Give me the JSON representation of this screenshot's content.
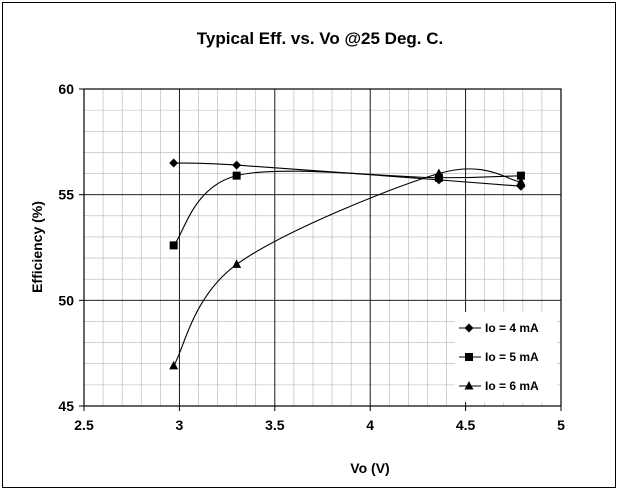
{
  "chart_data": {
    "type": "line",
    "title": "Typical Eff. vs. Vo @25 Deg. C.",
    "xlabel": "Vo (V)",
    "ylabel": "Efficiency (%)",
    "xlim": [
      2.5,
      5
    ],
    "ylim": [
      45,
      60
    ],
    "x_ticks": [
      "2.5",
      "3",
      "3.5",
      "4",
      "4.5",
      "5"
    ],
    "y_ticks": [
      "45",
      "50",
      "55",
      "60"
    ],
    "grid": true,
    "legend_position": "bottom-right",
    "series": [
      {
        "name": "Io = 4 mA",
        "marker": "diamond",
        "x": [
          2.97,
          3.3,
          4.36,
          4.79
        ],
        "y": [
          56.5,
          56.4,
          55.7,
          55.4
        ]
      },
      {
        "name": "Io = 5 mA",
        "marker": "square",
        "x": [
          2.97,
          3.3,
          4.36,
          4.79
        ],
        "y": [
          52.6,
          55.9,
          55.8,
          55.9
        ]
      },
      {
        "name": "Io = 6 mA",
        "marker": "triangle",
        "x": [
          2.97,
          3.3,
          4.36,
          4.79
        ],
        "y": [
          46.9,
          51.7,
          56.0,
          55.6
        ]
      }
    ]
  },
  "colors": {
    "line": "#000000",
    "background": "#ffffff",
    "major_grid": "#000000",
    "minor_grid": "#b3b3b3"
  }
}
